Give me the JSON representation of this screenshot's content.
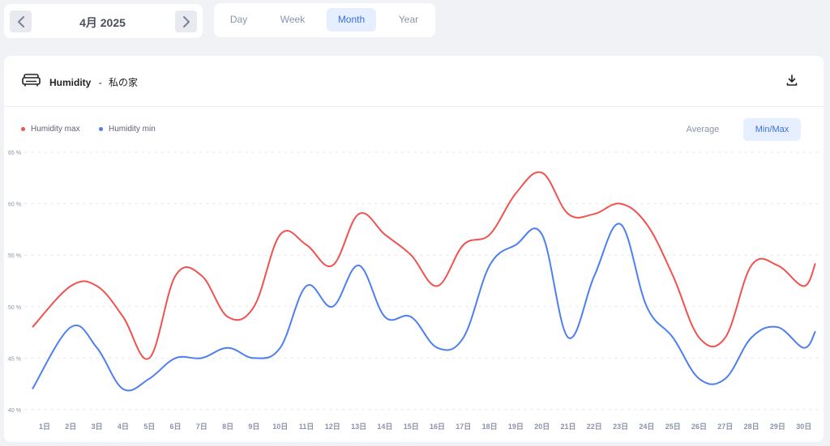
{
  "date_nav": {
    "label": "4月 2025",
    "prev_icon": "chevron-left-icon",
    "next_icon": "chevron-right-icon"
  },
  "period_tabs": [
    {
      "label": "Day",
      "active": false
    },
    {
      "label": "Week",
      "active": false
    },
    {
      "label": "Month",
      "active": true
    },
    {
      "label": "Year",
      "active": false
    }
  ],
  "card": {
    "icon": "sofa-icon",
    "title": "Humidity",
    "separator": "-",
    "location": "私の家",
    "download_icon": "download-icon"
  },
  "toggle": {
    "average": "Average",
    "minmax": "Min/Max",
    "active": "Min/Max"
  },
  "colors": {
    "max": "#f0524f",
    "min": "#4e7ff0",
    "accent": "#3b6fd8"
  },
  "chart_data": {
    "type": "line",
    "categories": [
      "1日",
      "2日",
      "3日",
      "4日",
      "5日",
      "6日",
      "7日",
      "8日",
      "9日",
      "10日",
      "11日",
      "12日",
      "13日",
      "14日",
      "15日",
      "16日",
      "17日",
      "18日",
      "19日",
      "20日",
      "21日",
      "22日",
      "23日",
      "24日",
      "25日",
      "26日",
      "27日",
      "28日",
      "29日",
      "30日"
    ],
    "y_tick_labels": [
      "40 %",
      "45 %",
      "50 %",
      "55 %",
      "60 %",
      "65 %"
    ],
    "ylim": [
      40,
      65
    ],
    "grid": true,
    "legend_position": "top-left",
    "series": [
      {
        "name": "Humidity max",
        "color": "#f0524f",
        "values": [
          48,
          52,
          52,
          49,
          45,
          53,
          53,
          49,
          50,
          57,
          56,
          54,
          59,
          57,
          55,
          52,
          56,
          57,
          61,
          63,
          59,
          59,
          60,
          58,
          53,
          47,
          47,
          54,
          54,
          52
        ]
      },
      {
        "name": "Humidity min",
        "color": "#4e7ff0",
        "values": [
          42,
          48,
          46,
          42,
          43,
          45,
          45,
          46,
          45,
          46,
          52,
          50,
          54,
          49,
          49,
          46,
          47,
          54,
          56,
          57,
          47,
          53,
          58,
          50,
          47,
          43,
          43,
          47,
          48,
          46
        ]
      }
    ],
    "extension_end": {
      "max": 54.2,
      "min": 47.6
    }
  }
}
